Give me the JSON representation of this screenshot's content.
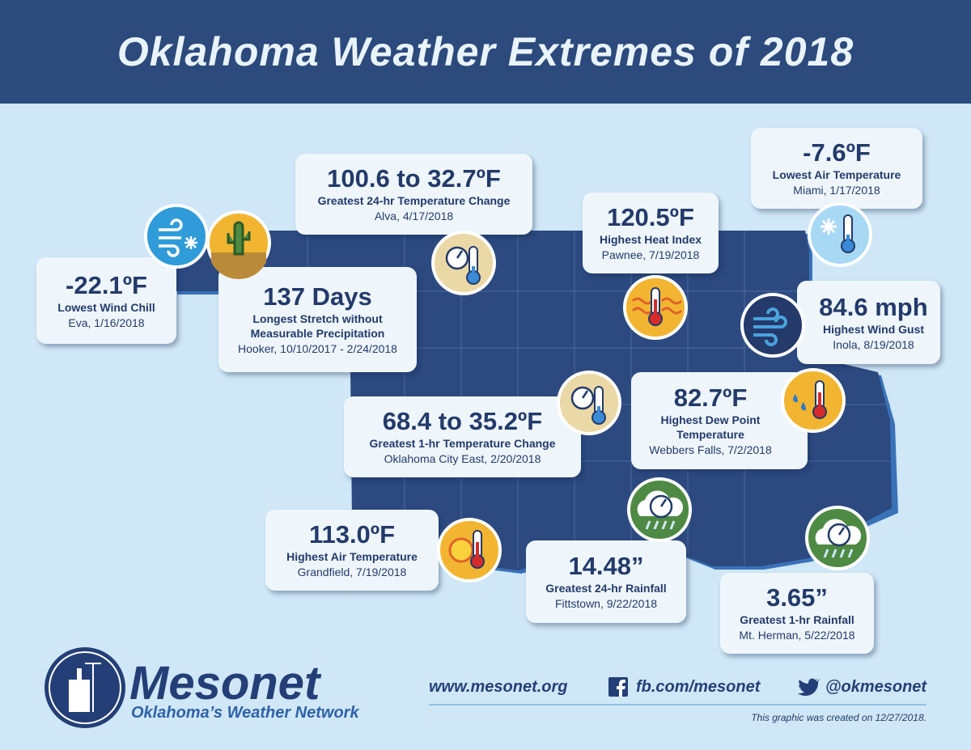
{
  "header": {
    "title": "Oklahoma Weather Extremes of 2018"
  },
  "callouts": [
    {
      "value": "-22.1ºF",
      "label": "Lowest Wind Chill",
      "location": "Eva, 1/16/2018"
    },
    {
      "value": "137 Days",
      "label": "Longest Stretch without Measurable Precipitation",
      "location": "Hooker, 10/10/2017 - 2/24/2018"
    },
    {
      "value": "100.6 to 32.7ºF",
      "label": "Greatest 24-hr Temperature Change",
      "location": "Alva, 4/17/2018"
    },
    {
      "value": "120.5ºF",
      "label": "Highest Heat Index",
      "location": "Pawnee, 7/19/2018"
    },
    {
      "value": "-7.6ºF",
      "label": "Lowest Air Temperature",
      "location": "Miami, 1/17/2018"
    },
    {
      "value": "84.6 mph",
      "label": "Highest Wind Gust",
      "location": "Inola, 8/19/2018"
    },
    {
      "value": "68.4 to 35.2ºF",
      "label": "Greatest 1-hr Temperature Change",
      "location": "Oklahoma City East, 2/20/2018"
    },
    {
      "value": "82.7ºF",
      "label": "Highest Dew Point Temperature",
      "location": "Webbers Falls, 7/2/2018"
    },
    {
      "value": "113.0ºF",
      "label": "Highest Air Temperature",
      "location": "Grandfield, 7/19/2018"
    },
    {
      "value": "14.48”",
      "label": "Greatest 24-hr Rainfall",
      "location": "Fittstown, 9/22/2018"
    },
    {
      "value": "3.65”",
      "label": "Greatest 1-hr Rainfall",
      "location": "Mt. Herman, 5/22/2018"
    }
  ],
  "footer": {
    "logo_name": "Mesonet",
    "logo_tagline": "Oklahoma’s Weather Network",
    "website": "www.mesonet.org",
    "facebook": "fb.com/mesonet",
    "twitter": "@okmesonet",
    "note": "This graphic was created on 12/27/2018."
  }
}
